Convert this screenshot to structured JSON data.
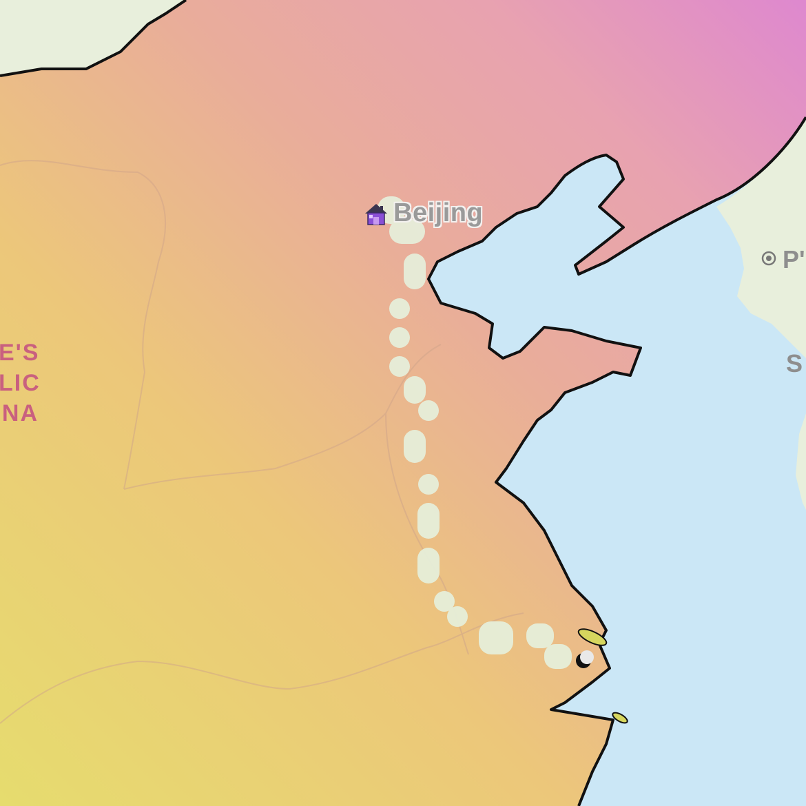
{
  "map": {
    "cities": [
      {
        "name": "Beijing"
      }
    ],
    "country_label": "E'S\nLIC\nNA",
    "partial_labels": {
      "capital": "P'",
      "sea": "S"
    },
    "icons": {
      "home": "house-icon",
      "destination": "crescent-moon-icon",
      "capital": "capital-target-icon"
    },
    "colors": {
      "ocean": "#cbe7f6",
      "route": "#e6f0dc",
      "coast": "#111111",
      "country_text": "#c9607f",
      "neighbor_land": "#e8efdc"
    }
  }
}
